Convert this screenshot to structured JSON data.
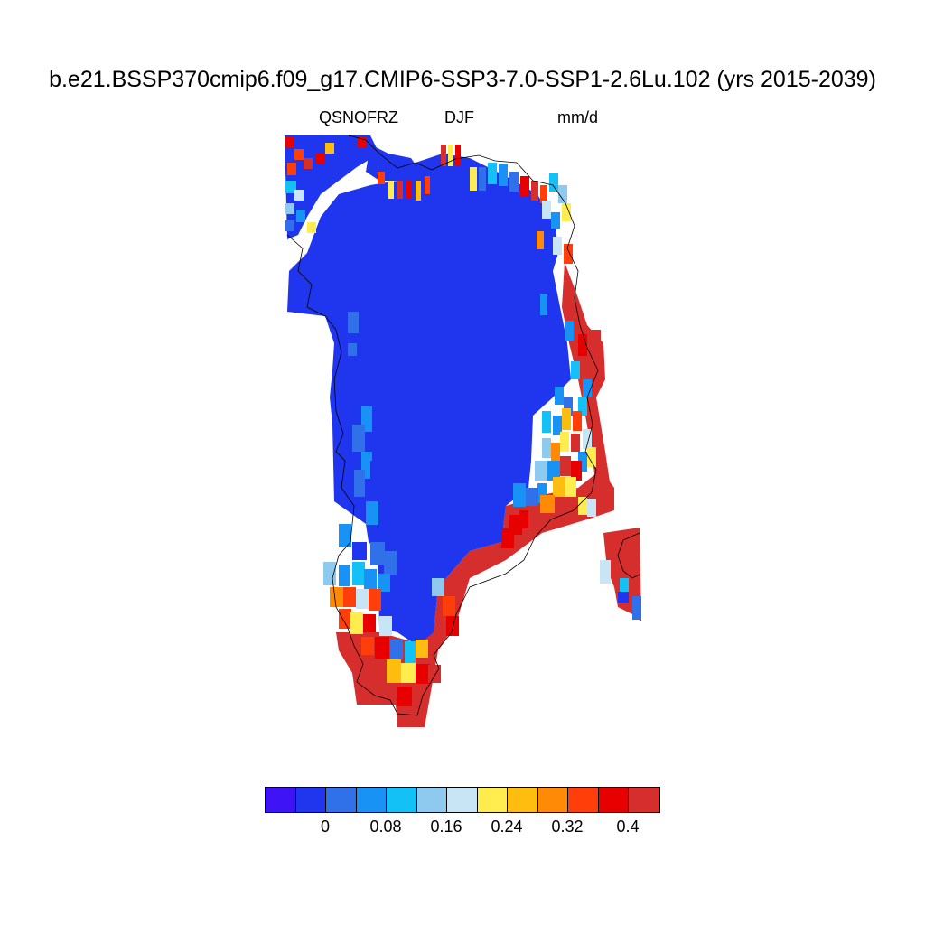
{
  "title": "b.e21.BSSP370cmip6.f09_g17.CMIP6-SSP3-7.0-SSP1-2.6Lu.102 (yrs 2015-2039)",
  "subtitle": {
    "variable": "QSNOFRZ",
    "season": "DJF",
    "units": "mm/d"
  },
  "map": {
    "region": "Greenland",
    "colors": {
      "ice_interior": "#1f35ee",
      "coastal_high": "#d62d2d",
      "coast_outline": "#000000",
      "background": "#ffffff"
    }
  },
  "colorbar": {
    "colors": [
      "#3e13f5",
      "#1f35ee",
      "#3070e8",
      "#1992f5",
      "#14c1f6",
      "#8ecaef",
      "#c8e5f5",
      "#ffec4e",
      "#ffbd0f",
      "#ff8a05",
      "#ff3e0a",
      "#e80000",
      "#d62d2d"
    ],
    "labels": [
      "0",
      "0.08",
      "0.16",
      "0.24",
      "0.32",
      "0.4"
    ]
  }
}
